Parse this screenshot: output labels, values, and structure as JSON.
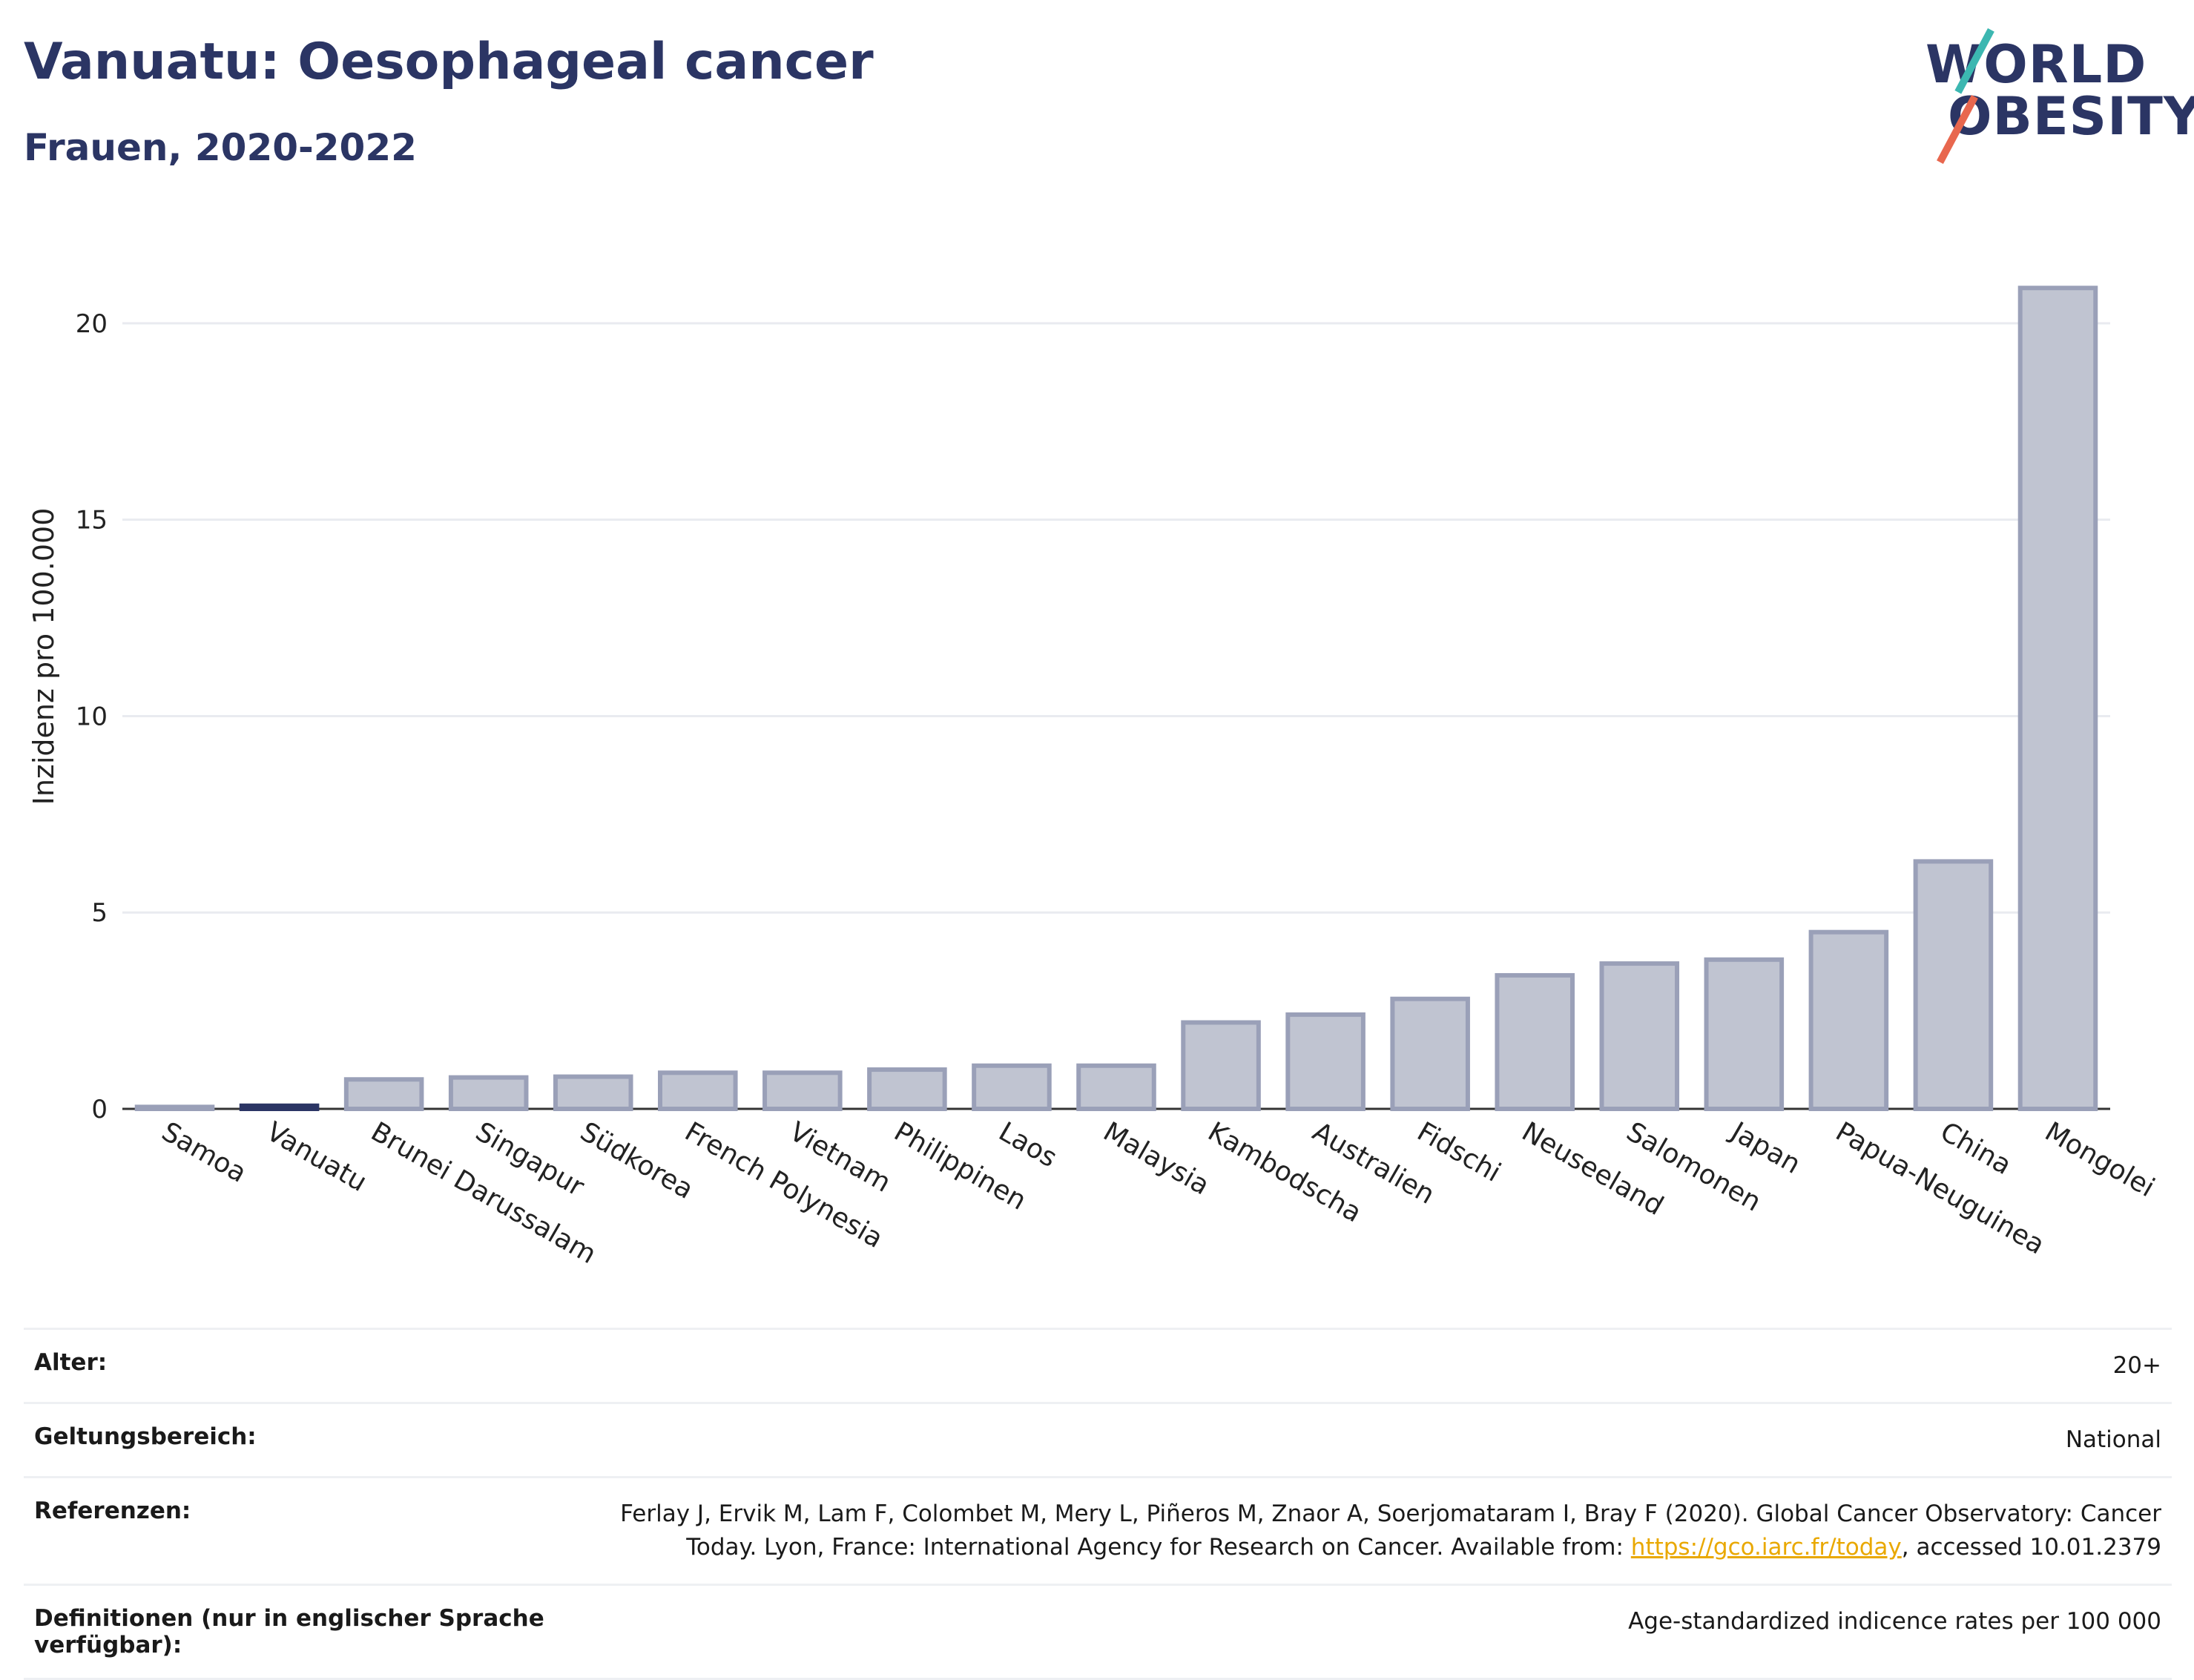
{
  "header": {
    "title": "Vanuatu: Oesophageal cancer",
    "subtitle": "Frauen, 2020-2022"
  },
  "logo": {
    "line1": "WORLD",
    "line2": "OBESITY",
    "color_primary": "#2b3564",
    "color_teal": "#3cb7b1",
    "color_coral": "#e8674e"
  },
  "chart_data": {
    "type": "bar",
    "ylabel": "Inzidenz pro 100.000",
    "ylim": [
      0,
      22
    ],
    "yticks": [
      0,
      5,
      10,
      15,
      20
    ],
    "grid": true,
    "highlight": "Vanuatu",
    "bar_color": "#c0c4d1",
    "bar_edge_color": "#9aa0b8",
    "highlight_color": "#2b3564",
    "categories": [
      "Samoa",
      "Vanuatu",
      "Brunei Darussalam",
      "Singapur",
      "Südkorea",
      "French Polynesia",
      "Vietnam",
      "Philippinen",
      "Laos",
      "Malaysia",
      "Kambodscha",
      "Australien",
      "Fidschi",
      "Neuseeland",
      "Salomonen",
      "Japan",
      "Papua-Neuguinea",
      "China",
      "Mongolei"
    ],
    "values": [
      0.05,
      0.08,
      0.75,
      0.8,
      0.82,
      0.92,
      0.92,
      1.0,
      1.1,
      1.1,
      2.2,
      2.4,
      2.8,
      3.4,
      3.7,
      3.8,
      4.5,
      6.3,
      20.9
    ]
  },
  "info": {
    "age_label": "Alter:",
    "age_value": "20+",
    "scope_label": "Geltungsbereich:",
    "scope_value": "National",
    "ref_label": "Referenzen:",
    "ref_text_1": "Ferlay J, Ervik M, Lam F, Colombet M, Mery L, Piñeros M, Znaor A, Soerjomataram I, Bray F (2020). Global Cancer Observatory: Cancer",
    "ref_text_2": "Today. Lyon, France: International Agency for Research on Cancer. Available from: ",
    "ref_link": "https://gco.iarc.fr/today",
    "ref_text_3": ", accessed 10.01.2379",
    "def_label": "Definitionen (nur in englischer Sprache verfügbar):",
    "def_value": "Age-standardized indicence rates per 100 000"
  }
}
